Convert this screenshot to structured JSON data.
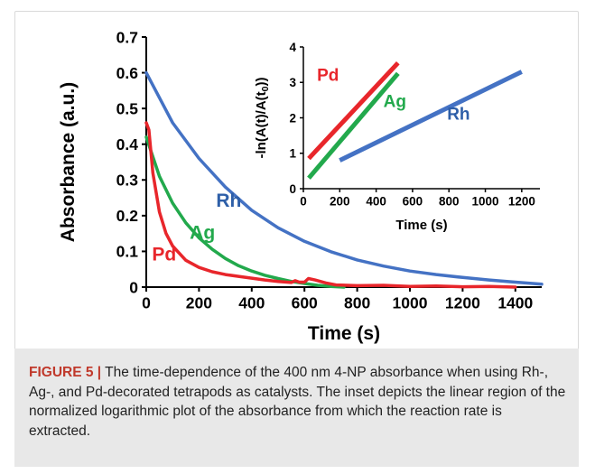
{
  "chart_data": [
    {
      "type": "line",
      "xlabel": "Time (s)",
      "ylabel": "Absorbance (a.u.)",
      "xlim": [
        0,
        1500
      ],
      "ylim": [
        0,
        0.7
      ],
      "xticks": [
        "0",
        "200",
        "400",
        "600",
        "800",
        "1000",
        "1200",
        "1400"
      ],
      "yticks": [
        "0",
        "0.1",
        "0.2",
        "0.3",
        "0.4",
        "0.5",
        "0.6",
        "0.7"
      ],
      "grid": false,
      "series": [
        {
          "name": "Rh",
          "color": "#4472c4",
          "x": [
            0,
            100,
            200,
            300,
            400,
            500,
            600,
            700,
            800,
            900,
            1000,
            1100,
            1200,
            1300,
            1400,
            1500
          ],
          "y": [
            0.6,
            0.46,
            0.36,
            0.28,
            0.215,
            0.166,
            0.128,
            0.099,
            0.076,
            0.059,
            0.045,
            0.035,
            0.027,
            0.02,
            0.014,
            0.008
          ]
        },
        {
          "name": "Ag",
          "color": "#22a94c",
          "x": [
            0,
            50,
            100,
            150,
            200,
            250,
            300,
            350,
            400,
            450,
            500,
            550,
            600,
            650,
            700,
            750
          ],
          "y": [
            0.42,
            0.31,
            0.235,
            0.18,
            0.138,
            0.106,
            0.08,
            0.06,
            0.045,
            0.033,
            0.024,
            0.016,
            0.01,
            0.005,
            0.002,
            0.0
          ]
        },
        {
          "name": "Pd",
          "color": "#e8262b",
          "x": [
            0,
            10,
            25,
            50,
            75,
            100,
            150,
            200,
            250,
            300,
            350,
            400,
            450,
            500,
            550,
            565,
            580,
            600,
            615,
            640,
            680,
            720,
            800,
            900,
            1000,
            1100,
            1200,
            1300,
            1400
          ],
          "y": [
            0.46,
            0.44,
            0.32,
            0.21,
            0.15,
            0.115,
            0.075,
            0.055,
            0.043,
            0.035,
            0.03,
            0.025,
            0.02,
            0.016,
            0.013,
            0.018,
            0.014,
            0.014,
            0.024,
            0.02,
            0.012,
            0.006,
            0.004,
            0.005,
            0.002,
            0.003,
            0.001,
            0.002,
            0.0
          ]
        }
      ]
    },
    {
      "type": "line",
      "xlabel": "Time (s)",
      "ylabel": "-ln(A(t)/A(t0))",
      "xlim": [
        0,
        1300
      ],
      "ylim": [
        0,
        4
      ],
      "xticks": [
        "0",
        "200",
        "400",
        "600",
        "800",
        "1000",
        "1200"
      ],
      "yticks": [
        "0",
        "1",
        "2",
        "3",
        "4"
      ],
      "grid": false,
      "series": [
        {
          "name": "Pd",
          "color": "#e8262b",
          "x": [
            30,
            520
          ],
          "y": [
            0.85,
            3.55
          ]
        },
        {
          "name": "Ag",
          "color": "#22a94c",
          "x": [
            30,
            520
          ],
          "y": [
            0.3,
            3.25
          ]
        },
        {
          "name": "Rh",
          "color": "#4472c4",
          "x": [
            200,
            1200
          ],
          "y": [
            0.8,
            3.3
          ]
        }
      ]
    }
  ],
  "caption": {
    "label": "FIGURE 5 |",
    "text": "The time-dependence of the 400 nm 4-NP absorbance when using Rh-, Ag-, and Pd-decorated tetrapods as catalysts. The inset depicts the linear region of the normalized logarithmic plot of the absorbance from which the reaction rate is extracted."
  }
}
